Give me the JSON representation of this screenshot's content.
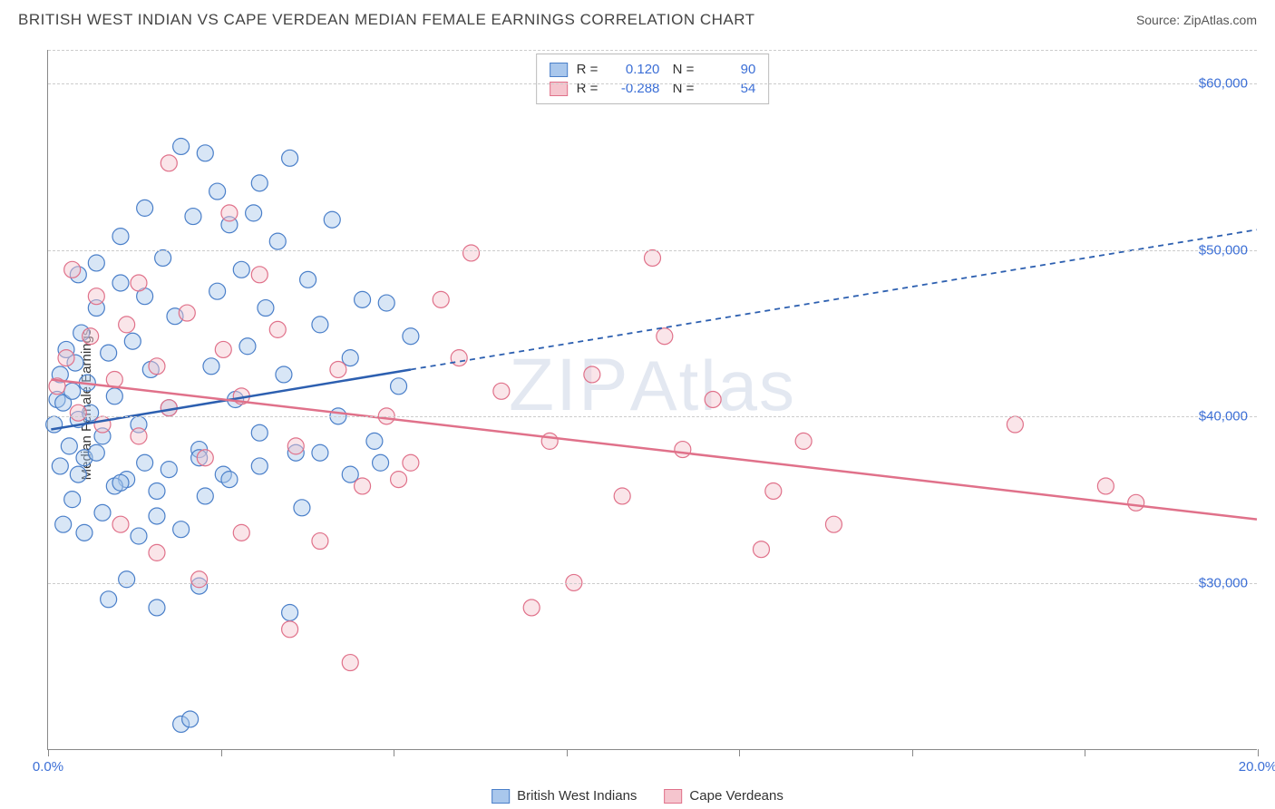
{
  "header": {
    "title": "BRITISH WEST INDIAN VS CAPE VERDEAN MEDIAN FEMALE EARNINGS CORRELATION CHART",
    "source": "Source: ZipAtlas.com"
  },
  "chart": {
    "type": "scatter",
    "ylabel": "Median Female Earnings",
    "watermark": "ZIPAtlas",
    "background_color": "#ffffff",
    "grid_color": "#cccccc",
    "axis_color": "#888888",
    "tick_label_color": "#3c6fd6",
    "label_fontsize": 15,
    "xlim": [
      0,
      20
    ],
    "ylim": [
      20000,
      62000
    ],
    "x_min_label": "0.0%",
    "x_max_label": "20.0%",
    "x_tick_positions": [
      0,
      2.86,
      5.71,
      8.57,
      11.43,
      14.29,
      17.14,
      20
    ],
    "y_gridlines": [
      30000,
      40000,
      50000,
      60000
    ],
    "y_gridline_labels": [
      "$30,000",
      "$40,000",
      "$50,000",
      "$60,000"
    ],
    "marker_radius": 9,
    "marker_opacity": 0.45,
    "series": [
      {
        "name": "British West Indians",
        "color_fill": "#a9c7ec",
        "color_stroke": "#4a7fc9",
        "line_color": "#2c5fb0",
        "R": "0.120",
        "N": "90",
        "trend_solid": {
          "x1": 0.05,
          "y1": 39200,
          "x2": 6.0,
          "y2": 42800
        },
        "trend_dashed": {
          "x1": 6.0,
          "y1": 42800,
          "x2": 20.0,
          "y2": 51200
        },
        "points": [
          [
            0.1,
            39500
          ],
          [
            0.15,
            41000
          ],
          [
            0.2,
            42500
          ],
          [
            0.25,
            40800
          ],
          [
            0.3,
            44000
          ],
          [
            0.35,
            38200
          ],
          [
            0.4,
            41500
          ],
          [
            0.45,
            43200
          ],
          [
            0.5,
            39800
          ],
          [
            0.55,
            45000
          ],
          [
            0.6,
            37500
          ],
          [
            0.65,
            42000
          ],
          [
            0.7,
            40200
          ],
          [
            0.8,
            46500
          ],
          [
            0.9,
            38800
          ],
          [
            1.0,
            43800
          ],
          [
            1.1,
            41200
          ],
          [
            1.2,
            48000
          ],
          [
            1.3,
            36200
          ],
          [
            1.4,
            44500
          ],
          [
            1.5,
            39500
          ],
          [
            1.6,
            47200
          ],
          [
            1.7,
            42800
          ],
          [
            1.8,
            35500
          ],
          [
            1.9,
            49500
          ],
          [
            2.0,
            40500
          ],
          [
            2.1,
            46000
          ],
          [
            2.2,
            21500
          ],
          [
            2.35,
            21800
          ],
          [
            2.4,
            52000
          ],
          [
            2.5,
            38000
          ],
          [
            2.6,
            55800
          ],
          [
            2.7,
            43000
          ],
          [
            2.8,
            47500
          ],
          [
            2.9,
            36500
          ],
          [
            3.0,
            51500
          ],
          [
            3.1,
            41000
          ],
          [
            3.2,
            48800
          ],
          [
            3.3,
            44200
          ],
          [
            3.4,
            52200
          ],
          [
            3.5,
            39000
          ],
          [
            3.6,
            46500
          ],
          [
            3.8,
            50500
          ],
          [
            3.9,
            42500
          ],
          [
            4.0,
            55500
          ],
          [
            4.1,
            37800
          ],
          [
            4.2,
            34500
          ],
          [
            4.3,
            48200
          ],
          [
            4.5,
            45500
          ],
          [
            4.7,
            51800
          ],
          [
            4.8,
            40000
          ],
          [
            5.0,
            43500
          ],
          [
            5.2,
            47000
          ],
          [
            5.4,
            38500
          ],
          [
            5.6,
            46800
          ],
          [
            5.8,
            41800
          ],
          [
            6.0,
            44800
          ],
          [
            0.25,
            33500
          ],
          [
            0.4,
            35000
          ],
          [
            0.6,
            33000
          ],
          [
            0.9,
            34200
          ],
          [
            1.1,
            35800
          ],
          [
            1.5,
            32800
          ],
          [
            1.8,
            34000
          ],
          [
            2.2,
            33200
          ],
          [
            2.6,
            35200
          ],
          [
            1.0,
            29000
          ],
          [
            1.3,
            30200
          ],
          [
            1.8,
            28500
          ],
          [
            2.5,
            29800
          ],
          [
            0.5,
            48500
          ],
          [
            0.8,
            49200
          ],
          [
            1.2,
            50800
          ],
          [
            1.6,
            52500
          ],
          [
            2.2,
            56200
          ],
          [
            2.8,
            53500
          ],
          [
            3.5,
            54000
          ],
          [
            0.2,
            37000
          ],
          [
            0.5,
            36500
          ],
          [
            0.8,
            37800
          ],
          [
            1.2,
            36000
          ],
          [
            1.6,
            37200
          ],
          [
            2.0,
            36800
          ],
          [
            2.5,
            37500
          ],
          [
            3.0,
            36200
          ],
          [
            3.5,
            37000
          ],
          [
            4.0,
            28200
          ],
          [
            4.5,
            37800
          ],
          [
            5.0,
            36500
          ],
          [
            5.5,
            37200
          ]
        ]
      },
      {
        "name": "Cape Verdeans",
        "color_fill": "#f5c5ce",
        "color_stroke": "#e0718a",
        "line_color": "#e0718a",
        "R": "-0.288",
        "N": "54",
        "trend_solid": {
          "x1": 0.05,
          "y1": 42200,
          "x2": 20.0,
          "y2": 33800
        },
        "points": [
          [
            0.15,
            41800
          ],
          [
            0.3,
            43500
          ],
          [
            0.5,
            40200
          ],
          [
            0.7,
            44800
          ],
          [
            0.9,
            39500
          ],
          [
            1.1,
            42200
          ],
          [
            1.3,
            45500
          ],
          [
            1.5,
            38800
          ],
          [
            1.8,
            43000
          ],
          [
            2.0,
            40500
          ],
          [
            2.3,
            46200
          ],
          [
            2.6,
            37500
          ],
          [
            2.9,
            44000
          ],
          [
            3.2,
            41200
          ],
          [
            3.5,
            48500
          ],
          [
            3.8,
            45200
          ],
          [
            4.1,
            38200
          ],
          [
            4.5,
            32500
          ],
          [
            4.8,
            42800
          ],
          [
            5.2,
            35800
          ],
          [
            5.6,
            40000
          ],
          [
            6.0,
            37200
          ],
          [
            6.5,
            47000
          ],
          [
            7.0,
            49800
          ],
          [
            7.5,
            41500
          ],
          [
            8.0,
            28500
          ],
          [
            8.3,
            38500
          ],
          [
            8.7,
            30000
          ],
          [
            9.0,
            42500
          ],
          [
            9.5,
            35200
          ],
          [
            10.0,
            49500
          ],
          [
            10.2,
            44800
          ],
          [
            10.5,
            38000
          ],
          [
            11.0,
            41000
          ],
          [
            11.8,
            32000
          ],
          [
            12.0,
            35500
          ],
          [
            12.5,
            38500
          ],
          [
            13.0,
            33500
          ],
          [
            16.0,
            39500
          ],
          [
            17.5,
            35800
          ],
          [
            18.0,
            34800
          ],
          [
            2.0,
            55200
          ],
          [
            3.0,
            52200
          ],
          [
            1.5,
            48000
          ],
          [
            0.8,
            47200
          ],
          [
            0.4,
            48800
          ],
          [
            1.2,
            33500
          ],
          [
            1.8,
            31800
          ],
          [
            2.5,
            30200
          ],
          [
            3.2,
            33000
          ],
          [
            4.0,
            27200
          ],
          [
            5.0,
            25200
          ],
          [
            5.8,
            36200
          ],
          [
            6.8,
            43500
          ]
        ]
      }
    ]
  },
  "legend_bottom": {
    "items": [
      {
        "label": "British West Indians",
        "fill": "#a9c7ec",
        "stroke": "#4a7fc9"
      },
      {
        "label": "Cape Verdeans",
        "fill": "#f5c5ce",
        "stroke": "#e0718a"
      }
    ]
  }
}
